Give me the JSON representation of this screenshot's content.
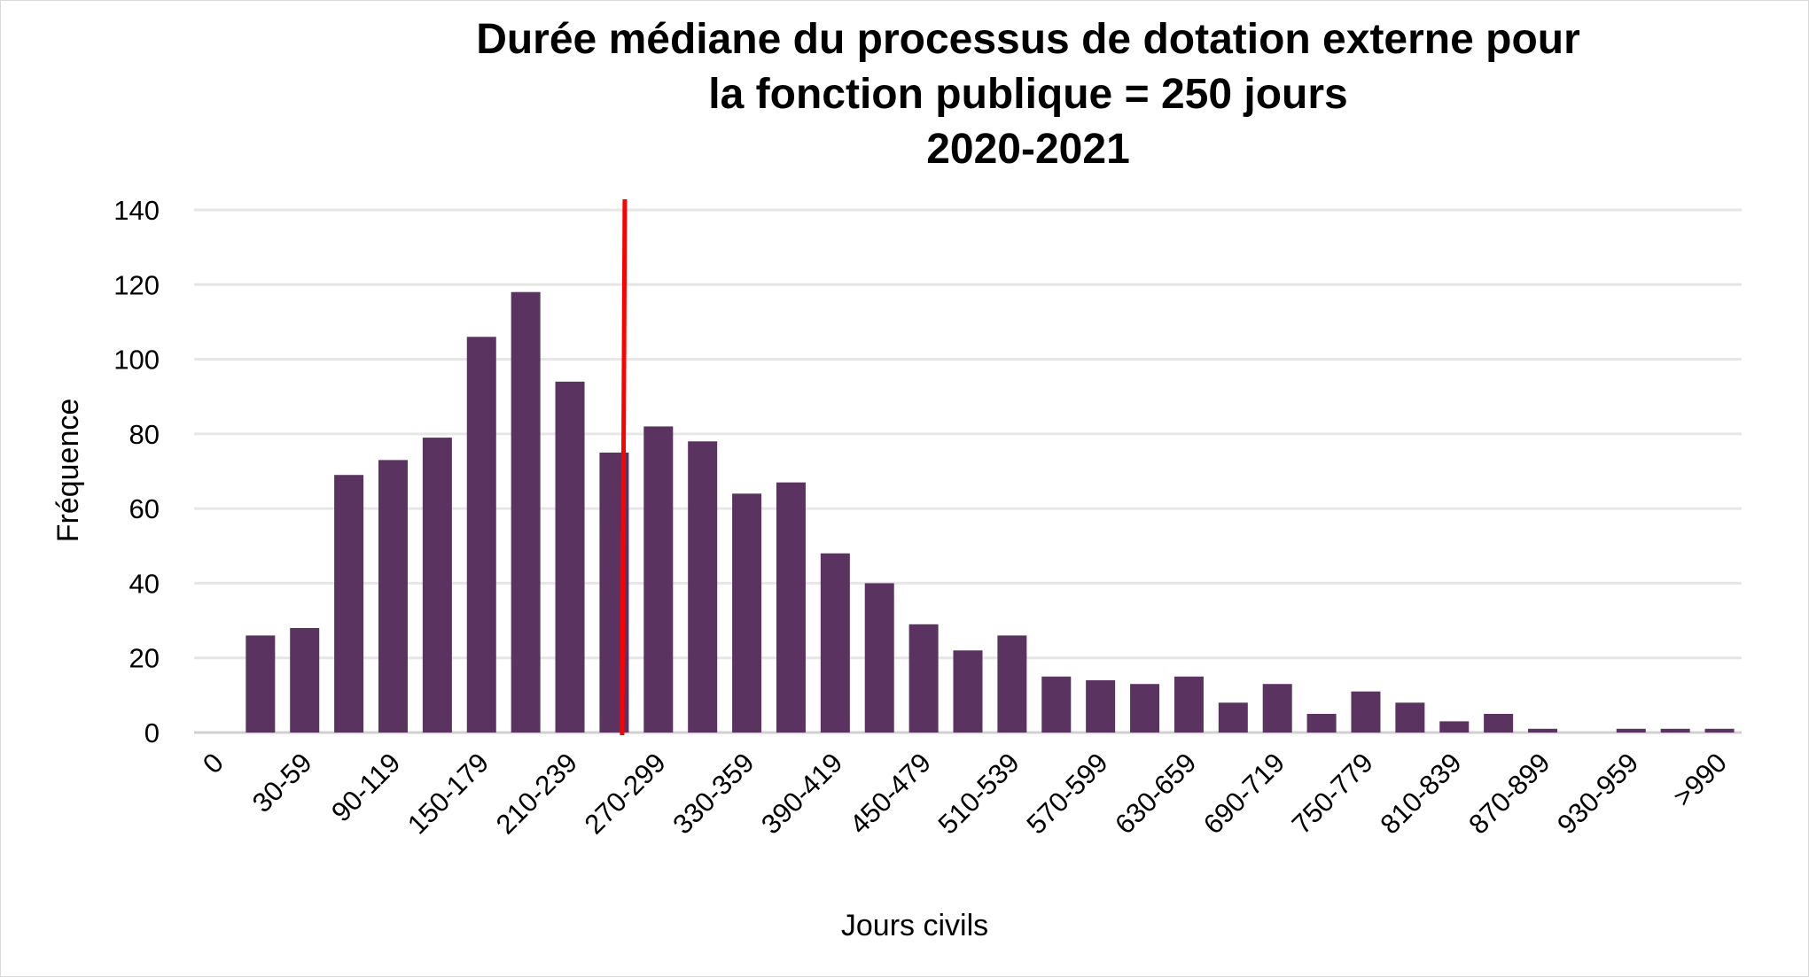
{
  "chart_data": {
    "type": "bar",
    "title_lines": [
      "Durée médiane du processus de dotation externe pour",
      "la fonction publique = 250 jours",
      "2020-2021"
    ],
    "xlabel": "Jours civils",
    "ylabel": "Fréquence",
    "ylim": [
      0,
      140
    ],
    "yticks": [
      0,
      20,
      40,
      60,
      80,
      100,
      120,
      140
    ],
    "grid": true,
    "legend": "none",
    "categories": [
      "0",
      "",
      "30-59",
      "",
      "90-119",
      "",
      "150-179",
      "",
      "210-239",
      "",
      "270-299",
      "",
      "330-359",
      "",
      "390-419",
      "",
      "450-479",
      "",
      "510-539",
      "",
      "570-599",
      "",
      "630-659",
      "",
      "690-719",
      "",
      "750-779",
      "",
      "810-839",
      "",
      "870-899",
      "",
      "930-959",
      "",
      ">990"
    ],
    "values": [
      0,
      26,
      28,
      69,
      73,
      79,
      106,
      118,
      94,
      75,
      82,
      78,
      64,
      67,
      48,
      40,
      29,
      22,
      26,
      15,
      14,
      13,
      15,
      8,
      13,
      5,
      11,
      8,
      3,
      5,
      1,
      0,
      1,
      1,
      1
    ],
    "median_line": {
      "value_days": 250,
      "category_index": 9,
      "color": "#ff0000"
    },
    "bar_color": "#5b3360",
    "grid_color": "#e6e6e6"
  }
}
